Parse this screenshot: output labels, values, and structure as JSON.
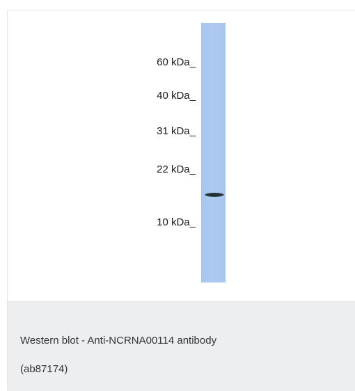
{
  "figure": {
    "markers": [
      {
        "label": "60 kDa_"
      },
      {
        "label": "40 kDa_"
      },
      {
        "label": "31 kDa_"
      },
      {
        "label": "22 kDa_"
      },
      {
        "label": "10 kDa_"
      }
    ],
    "lane_color": "#a9c6ef",
    "band_color": "#1b2a2a"
  },
  "caption": {
    "line1": "Western blot - Anti-NCRNA00114 antibody",
    "line2": "(ab87174)"
  }
}
